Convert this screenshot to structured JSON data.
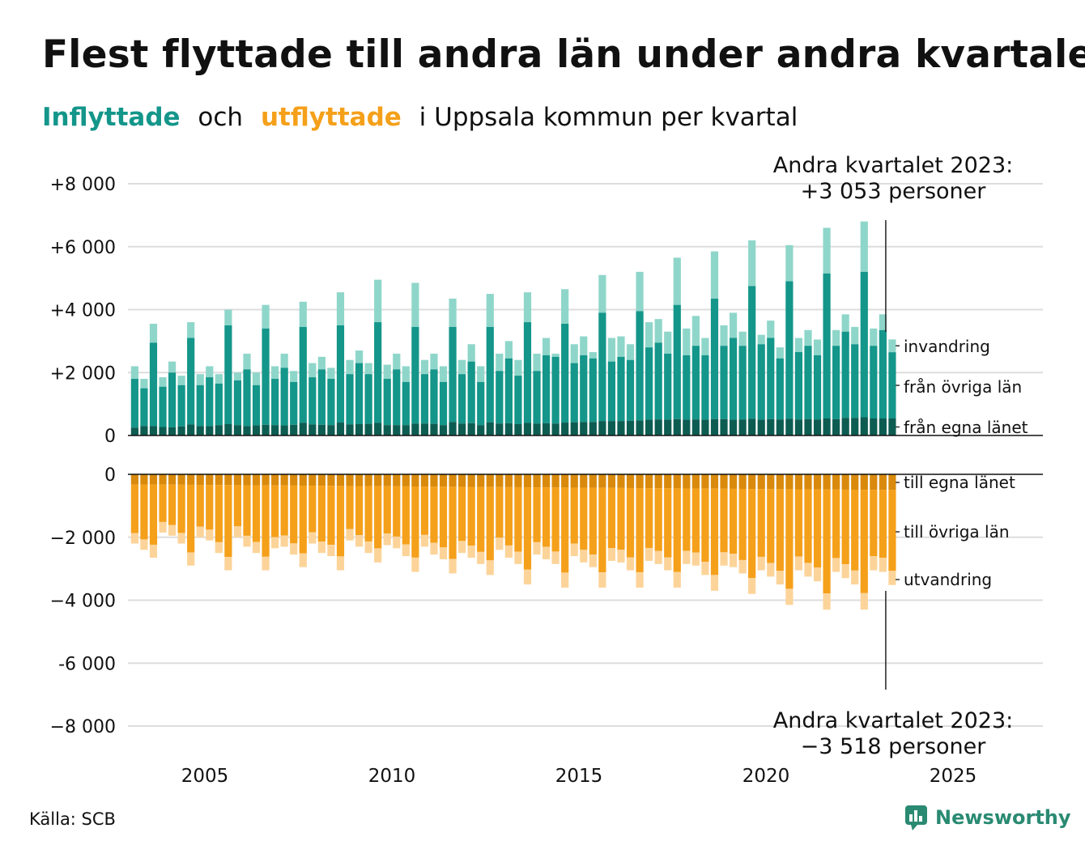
{
  "title": "Flest flyttade till andra län under andra kvartalet",
  "subtitle": {
    "in_word": "Inflyttade",
    "and_word": "och",
    "out_word": "utflyttade",
    "rest": "i Uppsala kommun per kvartal"
  },
  "source": "Källa: SCB",
  "brand": "Newsworthy",
  "colors": {
    "in_own": "#0d5c52",
    "in_other": "#14968a",
    "in_immig": "#8fd6ca",
    "out_own": "#d98a0c",
    "out_other": "#f5a01a",
    "out_emig": "#fcd49a",
    "grid": "#dddddd"
  },
  "chart_data": {
    "type": "bar",
    "stacked": true,
    "x_unit": "quarter",
    "x_start": "2003 Q1",
    "x_end": "2023 Q2",
    "x_ticks": [
      "2005",
      "2010",
      "2015",
      "2020",
      "2025"
    ],
    "y_top": {
      "ylim": [
        0,
        8000
      ],
      "ticks": [
        "0",
        "+2 000",
        "+4 000",
        "+6 000",
        "+8 000"
      ]
    },
    "y_bottom": {
      "ylim": [
        -8000,
        0
      ],
      "ticks": [
        "0",
        "−2 000",
        "−4 000",
        "-6 000",
        "−8 000"
      ]
    },
    "grid": true,
    "inflow_labels": [
      "invandring",
      "från övriga län",
      "från egna länet"
    ],
    "outflow_labels": [
      "till egna länet",
      "till övriga län",
      "utvandring"
    ],
    "annotation_top": [
      "Andra kvartalet 2023:",
      "+3 053 personer"
    ],
    "annotation_bottom": [
      "Andra kvartalet 2023:",
      "−3 518 personer"
    ],
    "inflow_totals": [
      2200,
      1800,
      3550,
      1850,
      2350,
      1900,
      3600,
      1950,
      2200,
      1950,
      4000,
      2000,
      2600,
      2000,
      4150,
      2200,
      2600,
      2050,
      4250,
      2300,
      2500,
      2150,
      4550,
      2400,
      2700,
      2300,
      4950,
      2250,
      2600,
      2200,
      4850,
      2400,
      2600,
      2200,
      4350,
      2400,
      2900,
      2200,
      4500,
      2600,
      3000,
      2400,
      4550,
      2600,
      3100,
      2600,
      4650,
      2900,
      3150,
      2650,
      5100,
      3100,
      3150,
      2900,
      5200,
      3600,
      3700,
      3300,
      5650,
      3400,
      3800,
      3100,
      5850,
      3500,
      3900,
      3300,
      6200,
      3200,
      3650,
      2800,
      6050,
      3100,
      3350,
      3050,
      6600,
      3350,
      3850,
      3450,
      6800,
      3400,
      3850,
      3053
    ],
    "inflow_other_tops": [
      1800,
      1500,
      2950,
      1550,
      2000,
      1600,
      3100,
      1600,
      1850,
      1650,
      3500,
      1750,
      2100,
      1600,
      3400,
      1800,
      2150,
      1700,
      3450,
      1850,
      2100,
      1800,
      3500,
      1950,
      2300,
      1950,
      3600,
      1800,
      2100,
      1700,
      3450,
      1950,
      2100,
      1700,
      3450,
      1950,
      2350,
      1700,
      3450,
      2050,
      2450,
      1900,
      3600,
      2050,
      2550,
      2500,
      3550,
      2300,
      2550,
      2450,
      3900,
      2350,
      2500,
      2400,
      3950,
      2800,
      2950,
      2600,
      4150,
      2550,
      2850,
      2550,
      4350,
      2850,
      3100,
      2850,
      4750,
      2900,
      3100,
      2450,
      4900,
      2650,
      2850,
      2550,
      5150,
      2850,
      3300,
      2900,
      5200,
      2850,
      3350,
      2646
    ],
    "inflow_own": [
      250,
      300,
      300,
      270,
      260,
      290,
      350,
      300,
      300,
      330,
      360,
      330,
      300,
      320,
      340,
      330,
      320,
      340,
      400,
      350,
      340,
      330,
      410,
      350,
      360,
      370,
      400,
      330,
      330,
      330,
      380,
      380,
      370,
      330,
      430,
      380,
      390,
      330,
      420,
      380,
      390,
      360,
      400,
      380,
      390,
      380,
      410,
      420,
      430,
      430,
      460,
      460,
      460,
      470,
      480,
      500,
      510,
      500,
      520,
      500,
      510,
      500,
      520,
      520,
      500,
      510,
      530,
      500,
      520,
      510,
      530,
      510,
      520,
      510,
      540,
      520,
      560,
      560,
      580,
      540,
      540,
      540
    ],
    "outflow_totals": [
      -2200,
      -2400,
      -2650,
      -1850,
      -1950,
      -2200,
      -2900,
      -2000,
      -2100,
      -2500,
      -3050,
      -2000,
      -2300,
      -2500,
      -3050,
      -2350,
      -2300,
      -2550,
      -2950,
      -2200,
      -2500,
      -2600,
      -3050,
      -2100,
      -2300,
      -2500,
      -2800,
      -2250,
      -2350,
      -2600,
      -3100,
      -2300,
      -2550,
      -2700,
      -3150,
      -2500,
      -2650,
      -2850,
      -3200,
      -2400,
      -2650,
      -2850,
      -3500,
      -2550,
      -2700,
      -2850,
      -3600,
      -2600,
      -2800,
      -2950,
      -3600,
      -2750,
      -2800,
      -3050,
      -3600,
      -2750,
      -2850,
      -3050,
      -3600,
      -2850,
      -2900,
      -3200,
      -3700,
      -2900,
      -2950,
      -3150,
      -3800,
      -3050,
      -3250,
      -3500,
      -4150,
      -3050,
      -3250,
      -3400,
      -4300,
      -3100,
      -3300,
      -3500,
      -4300,
      -3050,
      -3100,
      -3518
    ]
  }
}
